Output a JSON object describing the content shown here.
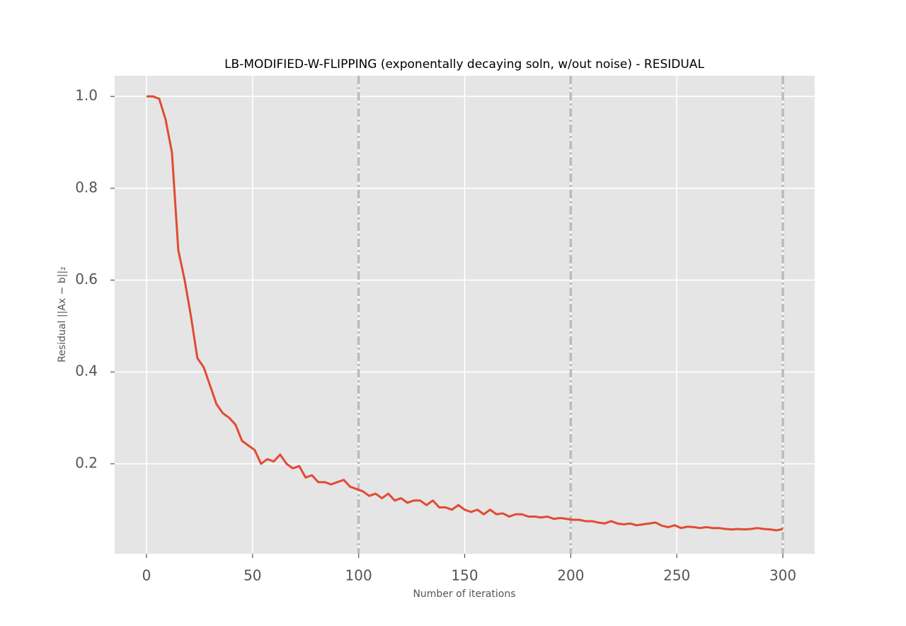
{
  "chart_data": {
    "type": "line",
    "title": "LB-MODIFIED-W-FLIPPING (exponentally decaying soln, w/out noise) - RESIDUAL",
    "x_label": "Number of iterations",
    "y_label": "Residual ||Ax − b||₂",
    "x": [
      0,
      3,
      6,
      9,
      12,
      15,
      18,
      21,
      24,
      27,
      30,
      33,
      36,
      39,
      42,
      45,
      48,
      51,
      54,
      57,
      60,
      63,
      66,
      69,
      72,
      75,
      78,
      81,
      84,
      87,
      90,
      93,
      96,
      99,
      102,
      105,
      108,
      111,
      114,
      117,
      120,
      123,
      126,
      129,
      132,
      135,
      138,
      141,
      144,
      147,
      150,
      153,
      156,
      159,
      162,
      165,
      168,
      171,
      174,
      177,
      180,
      183,
      186,
      189,
      192,
      195,
      198,
      201,
      204,
      207,
      210,
      213,
      216,
      219,
      222,
      225,
      228,
      231,
      234,
      237,
      240,
      243,
      246,
      249,
      252,
      255,
      258,
      261,
      264,
      267,
      270,
      273,
      276,
      279,
      282,
      285,
      288,
      291,
      294,
      297,
      300
    ],
    "series": [
      {
        "color": "#e24a33",
        "values": [
          1.0,
          1.0,
          0.995,
          0.95,
          0.878,
          0.665,
          0.6,
          0.52,
          0.43,
          0.41,
          0.37,
          0.33,
          0.31,
          0.3,
          0.285,
          0.25,
          0.24,
          0.23,
          0.2,
          0.21,
          0.205,
          0.22,
          0.2,
          0.19,
          0.195,
          0.17,
          0.175,
          0.16,
          0.16,
          0.155,
          0.16,
          0.165,
          0.15,
          0.145,
          0.14,
          0.13,
          0.135,
          0.125,
          0.135,
          0.12,
          0.125,
          0.115,
          0.12,
          0.12,
          0.11,
          0.12,
          0.105,
          0.105,
          0.1,
          0.11,
          0.1,
          0.095,
          0.1,
          0.09,
          0.1,
          0.09,
          0.092,
          0.085,
          0.09,
          0.09,
          0.085,
          0.085,
          0.083,
          0.085,
          0.08,
          0.082,
          0.08,
          0.078,
          0.078,
          0.075,
          0.075,
          0.072,
          0.07,
          0.075,
          0.07,
          0.068,
          0.07,
          0.066,
          0.068,
          0.07,
          0.072,
          0.065,
          0.062,
          0.066,
          0.06,
          0.063,
          0.062,
          0.06,
          0.062,
          0.06,
          0.06,
          0.058,
          0.057,
          0.058,
          0.057,
          0.058,
          0.06,
          0.058,
          0.057,
          0.055,
          0.058
        ]
      }
    ],
    "xlim": [
      -15,
      315
    ],
    "ylim": [
      0.004,
      1.045
    ],
    "xticks": [
      0,
      50,
      100,
      150,
      200,
      250,
      300
    ],
    "yticks": [
      0.2,
      0.4,
      0.6,
      0.8,
      {
        "value": 1,
        "label": "1.0"
      }
    ],
    "vlines": [
      100,
      200,
      300
    ],
    "vline_color": "#bbbbbb",
    "grid": true
  }
}
